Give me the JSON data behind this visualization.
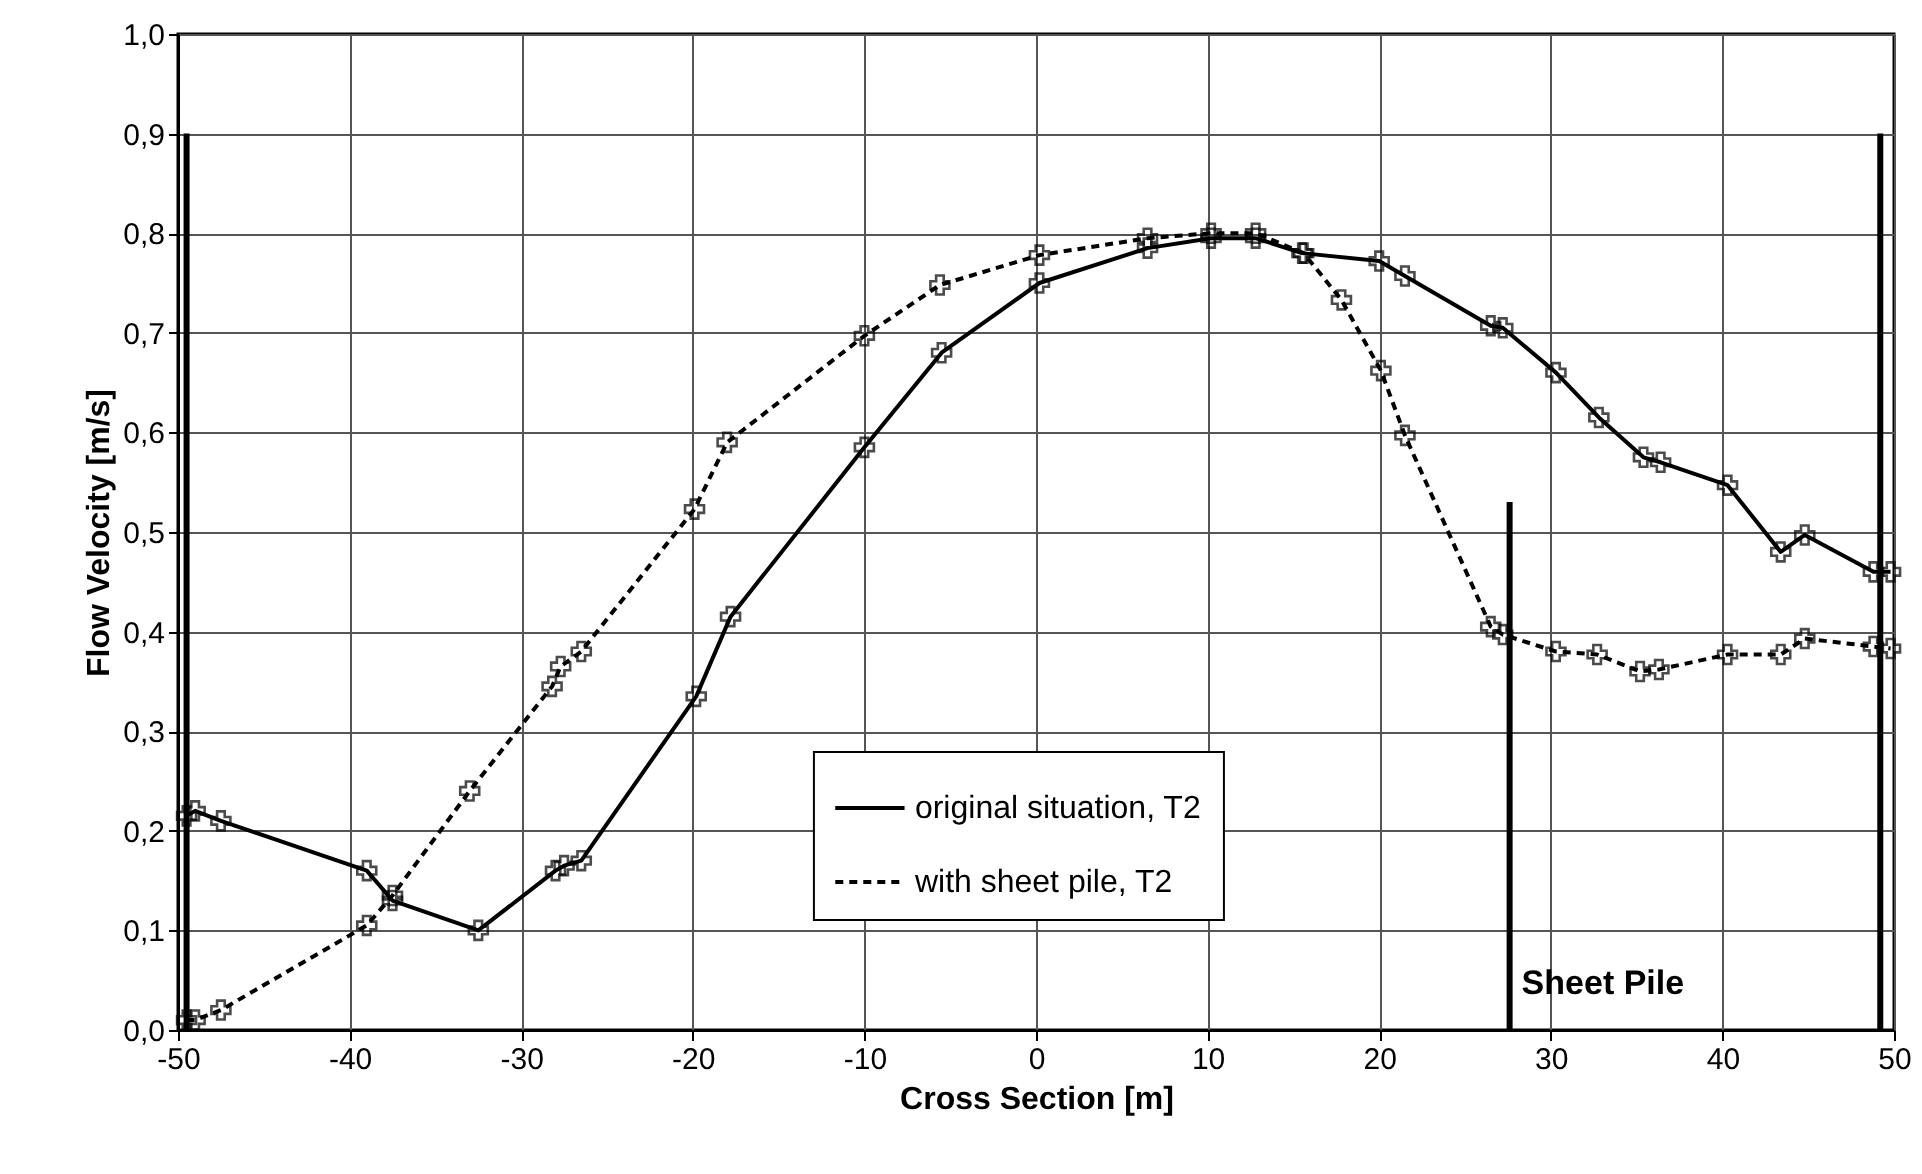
{
  "chart_data": {
    "type": "line",
    "xlabel": "Cross Section [m]",
    "ylabel": "Flow Velocity [m/s]",
    "xlim": [
      -50,
      50
    ],
    "xticks": [
      -50,
      -40,
      -30,
      -20,
      -10,
      0,
      10,
      20,
      30,
      40,
      50
    ],
    "ylim": [
      0,
      1
    ],
    "yticks": [
      {
        "value": 0,
        "label": "0,0"
      },
      {
        "value": 0.1,
        "label": "0,1"
      },
      {
        "value": 0.2,
        "label": "0,2"
      },
      {
        "value": 0.3,
        "label": "0,3"
      },
      {
        "value": 0.4,
        "label": "0,4"
      },
      {
        "value": 0.5,
        "label": "0,5"
      },
      {
        "value": 0.6,
        "label": "0,6"
      },
      {
        "value": 0.7,
        "label": "0,7"
      },
      {
        "value": 0.8,
        "label": "0,8"
      },
      {
        "value": 0.9,
        "label": "0,9"
      },
      {
        "value": 1,
        "label": "1,0"
      }
    ],
    "grid": true,
    "legend": "bottom",
    "marker": "cross",
    "series": [
      {
        "name": "original situation, T2",
        "color": "#000000",
        "line_style": "solid",
        "x": [
          -49.5,
          -49,
          -47.5,
          -39,
          -37.5,
          -32.5,
          -28,
          -27.5,
          -26.5,
          -19.8,
          -17.8,
          -10,
          -5.5,
          0.2,
          6.5,
          10.2,
          12.8,
          15.5,
          20,
          21.5,
          26.5,
          27.2,
          30.3,
          32.8,
          35.4,
          36.4,
          40.3,
          43.4,
          44.8,
          48.8,
          49.8
        ],
        "values": [
          0.215,
          0.22,
          0.21,
          0.16,
          0.13,
          0.1,
          0.16,
          0.165,
          0.17,
          0.335,
          0.415,
          0.585,
          0.68,
          0.75,
          0.785,
          0.795,
          0.795,
          0.78,
          0.772,
          0.757,
          0.707,
          0.705,
          0.66,
          0.615,
          0.575,
          0.57,
          0.547,
          0.48,
          0.497,
          0.46,
          0.46
        ]
      },
      {
        "name": "with sheet pile, T2",
        "color": "#000000",
        "line_style": "dashed",
        "x": [
          -49.5,
          -49,
          -47.5,
          -39,
          -37.5,
          -33,
          -28.2,
          -27.7,
          -26.5,
          -19.9,
          -18,
          -10,
          -5.6,
          0.2,
          6.5,
          10.2,
          12.8,
          15.6,
          17.8,
          20.1,
          21.5,
          26.5,
          27.2,
          30.3,
          32.7,
          35.2,
          36.3,
          40.3,
          43.4,
          44.8,
          48.8,
          49.8
        ],
        "values": [
          0.01,
          0.01,
          0.02,
          0.105,
          0.135,
          0.24,
          0.345,
          0.365,
          0.38,
          0.523,
          0.59,
          0.697,
          0.748,
          0.778,
          0.795,
          0.8,
          0.8,
          0.78,
          0.733,
          0.662,
          0.597,
          0.405,
          0.397,
          0.38,
          0.377,
          0.36,
          0.362,
          0.377,
          0.377,
          0.393,
          0.385,
          0.383
        ]
      },
      {
        "type": "line",
        "marker": "none",
        "line_style": "solid",
        "color": "#000000",
        "x": [
          -49.5,
          -49.5
        ],
        "values": [
          0,
          0.9
        ]
      },
      {
        "type": "line",
        "marker": "none",
        "line_style": "solid",
        "color": "#000000",
        "x": [
          27.6,
          27.6
        ],
        "values": [
          0,
          0.53
        ]
      },
      {
        "type": "line",
        "marker": "none",
        "line_style": "solid",
        "color": "#000000",
        "x": [
          49.2,
          49.2
        ],
        "values": [
          0,
          0.9
        ]
      }
    ],
    "annotations": [
      {
        "text": "Sheet Pile",
        "x": 27.6,
        "y": 0
      }
    ]
  }
}
